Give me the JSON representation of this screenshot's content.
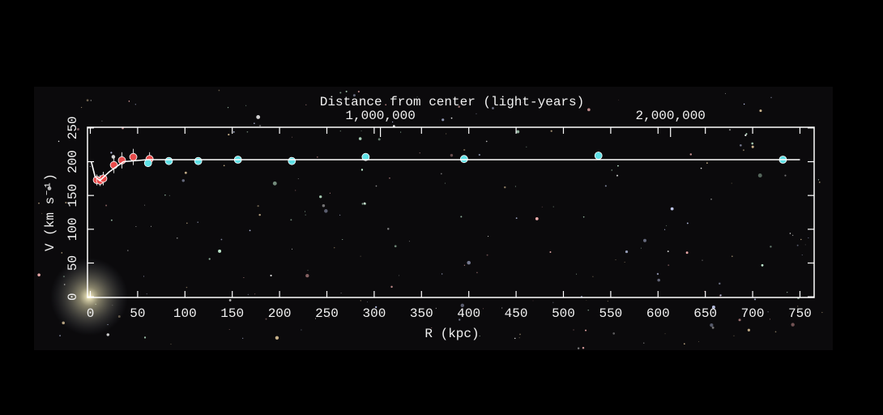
{
  "chart_data": {
    "type": "scatter",
    "x_label": "R (kpc)",
    "y_label": "V (km s⁻¹)",
    "x2_label": "Distance from center (light-years)",
    "xlim": [
      -3,
      765
    ],
    "ylim": [
      -1,
      251
    ],
    "x2lim": [
      -9785,
      2495100
    ],
    "xticks": [
      0,
      50,
      100,
      150,
      200,
      250,
      300,
      350,
      400,
      450,
      500,
      550,
      600,
      650,
      700,
      750
    ],
    "yticks": [
      0,
      50,
      100,
      150,
      200,
      250
    ],
    "x2ticks": [
      {
        "value": 1000000,
        "label": "1,000,000"
      },
      {
        "value": 2000000,
        "label": "2,000,000"
      }
    ],
    "series": [
      {
        "color": "#e84a4a",
        "x": [
          6.9,
          10.3,
          13.7,
          24.9,
          33.4,
          45.4,
          62.6
        ],
        "values": [
          173,
          172,
          175,
          195,
          202,
          207,
          204
        ],
        "errors": [
          8,
          8,
          10,
          12,
          12,
          12,
          10
        ]
      },
      {
        "color": "#5fe0e6",
        "x": [
          61,
          83,
          114,
          156,
          213,
          291,
          395,
          537,
          732
        ],
        "values": [
          198,
          201,
          201,
          203,
          201,
          207,
          204,
          209,
          203
        ],
        "errors": [
          5,
          4,
          4,
          4,
          4,
          5,
          5,
          6,
          5
        ]
      },
      {
        "type": "line",
        "color": "#ffffff",
        "x": [
          1,
          5,
          10,
          20,
          35,
          60,
          750
        ],
        "values": [
          200,
          178,
          172,
          185,
          200,
          203,
          203
        ]
      }
    ]
  }
}
